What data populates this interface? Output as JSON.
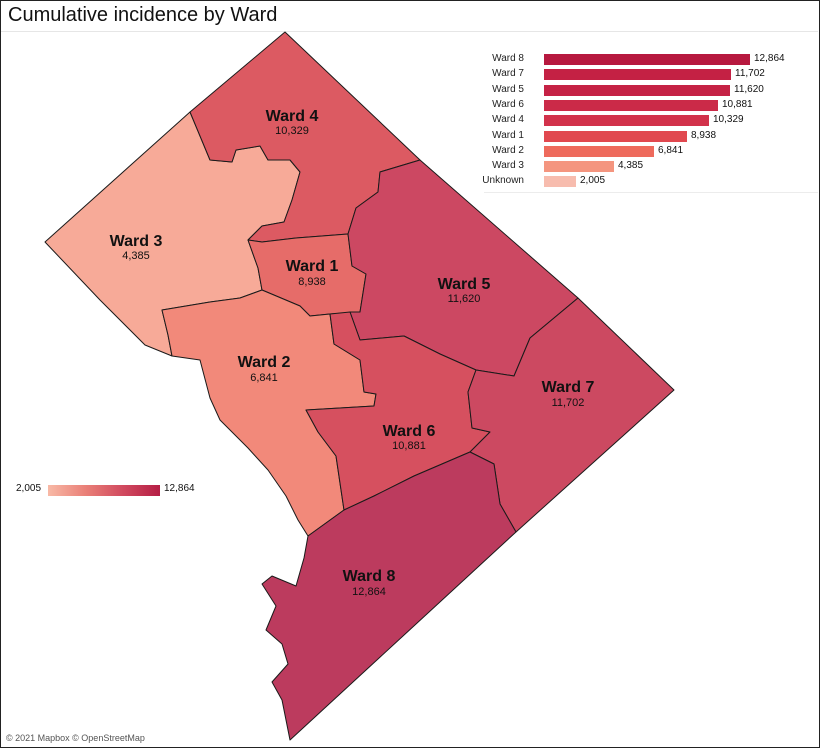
{
  "title": "Cumulative incidence by Ward",
  "map": {
    "wards": [
      {
        "id": "ward-8",
        "name": "Ward 8",
        "value": "12,864",
        "color": "#bc3b5e"
      },
      {
        "id": "ward-7",
        "name": "Ward 7",
        "value": "11,702",
        "color": "#cc4961"
      },
      {
        "id": "ward-5",
        "name": "Ward 5",
        "value": "11,620",
        "color": "#cc4862"
      },
      {
        "id": "ward-6",
        "name": "Ward 6",
        "value": "10,881",
        "color": "#d6505f"
      },
      {
        "id": "ward-4",
        "name": "Ward 4",
        "value": "10,329",
        "color": "#dc5a62"
      },
      {
        "id": "ward-1",
        "name": "Ward 1",
        "value": "8,938",
        "color": "#e66c69"
      },
      {
        "id": "ward-2",
        "name": "Ward 2",
        "value": "6,841",
        "color": "#f2897a"
      },
      {
        "id": "ward-3",
        "name": "Ward 3",
        "value": "4,385",
        "color": "#f7aa98"
      }
    ]
  },
  "bar_chart": {
    "max": 12864,
    "rows": [
      {
        "label": "Ward 8",
        "value": 12864,
        "display": "12,864",
        "color": "#b7193f"
      },
      {
        "label": "Ward 7",
        "value": 11702,
        "display": "11,702",
        "color": "#c42144"
      },
      {
        "label": "Ward 5",
        "value": 11620,
        "display": "11,620",
        "color": "#c52245"
      },
      {
        "label": "Ward 6",
        "value": 10881,
        "display": "10,881",
        "color": "#cb2a48"
      },
      {
        "label": "Ward 4",
        "value": 10329,
        "display": "10,329",
        "color": "#d2324b"
      },
      {
        "label": "Ward 1",
        "value": 8938,
        "display": "8,938",
        "color": "#e1484f"
      },
      {
        "label": "Ward 2",
        "value": 6841,
        "display": "6,841",
        "color": "#ee6a5c"
      },
      {
        "label": "Ward 3",
        "value": 4385,
        "display": "4,385",
        "color": "#f4957f"
      },
      {
        "label": "Unknown",
        "value": 2005,
        "display": "2,005",
        "color": "#f7bcae"
      }
    ]
  },
  "legend": {
    "min": "2,005",
    "max": "12,864"
  },
  "attribution": "© 2021 Mapbox © OpenStreetMap"
}
